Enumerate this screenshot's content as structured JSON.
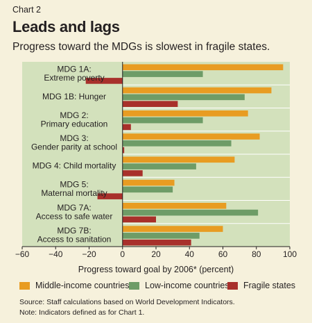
{
  "header": {
    "kicker": "Chart 2",
    "title": "Leads and lags",
    "subtitle": "Progress toward the MDGs is slowest in fragile states."
  },
  "colors": {
    "plot_background": "#d3e1bc",
    "middle_income": "#e89c22",
    "low_income": "#6e9c67",
    "fragile": "#a8302b"
  },
  "chart_data": {
    "type": "bar",
    "orientation": "horizontal",
    "categories": [
      [
        "MDG 1A:",
        "Extreme poverty"
      ],
      [
        "MDG 1B: Hunger"
      ],
      [
        "MDG 2:",
        "Primary education"
      ],
      [
        "MDG 3:",
        "Gender parity at school"
      ],
      [
        "MDG 4: Child mortality"
      ],
      [
        "MDG 5:",
        "Maternal mortality"
      ],
      [
        "MDG 7A:",
        "Access to safe water"
      ],
      [
        "MDG 7B:",
        "Access to sanitation"
      ]
    ],
    "series": [
      {
        "name": "Middle-income countries",
        "values": [
          96,
          89,
          75,
          82,
          67,
          31,
          62,
          60
        ]
      },
      {
        "name": "Low-income countries",
        "values": [
          48,
          73,
          48,
          65,
          44,
          30,
          81,
          46
        ]
      },
      {
        "name": "Fragile states",
        "values": [
          -22,
          33,
          5,
          1,
          12,
          -15,
          20,
          41
        ]
      }
    ],
    "xlabel": "Progress toward goal by 2006* (percent)",
    "xlim": [
      -60,
      100
    ],
    "xticks": [
      -60,
      -40,
      -20,
      0,
      20,
      40,
      60,
      80,
      100
    ],
    "grid": false,
    "legend_position": "bottom"
  },
  "footer": {
    "source": "Source: Staff calculations based on World Development Indicators.",
    "note": "Note: Indicators defined as for Chart 1."
  }
}
